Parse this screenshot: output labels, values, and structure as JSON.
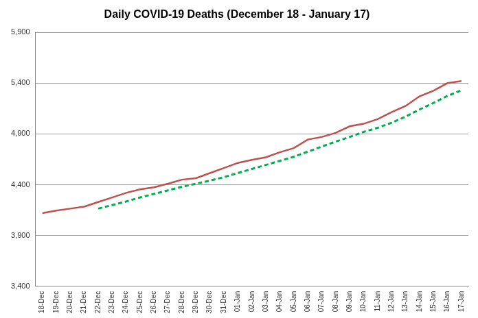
{
  "chart_data": {
    "type": "line",
    "title": "Daily COVID-19 Deaths (December 18 - January 17)",
    "categories": [
      "18-Dec",
      "19-Dec",
      "20-Dec",
      "21-Dec",
      "22-Dec",
      "23-Dec",
      "24-Dec",
      "25-Dec",
      "26-Dec",
      "27-Dec",
      "28-Dec",
      "29-Dec",
      "30-Dec",
      "31-Dec",
      "01-Jan",
      "02-Jan",
      "03-Jan",
      "04-Jan",
      "05-Jan",
      "06-Jan",
      "07-Jan",
      "08-Jan",
      "09-Jan",
      "10-Jan",
      "11-Jan",
      "12-Jan",
      "13-Jan",
      "14-Jan",
      "15-Jan",
      "16-Jan",
      "17-Jan"
    ],
    "series": [
      {
        "color": "#c0504d",
        "line_style": "solid",
        "values": [
          4120,
          4145,
          4165,
          4185,
          4230,
          4275,
          4320,
          4355,
          4375,
          4410,
          4450,
          4465,
          4515,
          4565,
          4615,
          4645,
          4670,
          4720,
          4760,
          4845,
          4870,
          4910,
          4975,
          5000,
          5045,
          5115,
          5175,
          5270,
          5325,
          5400,
          5420
        ]
      },
      {
        "color": "#00b050",
        "line_style": "dashed",
        "values": [
          null,
          null,
          null,
          null,
          4165,
          4200,
          4235,
          4275,
          4310,
          4345,
          4380,
          4410,
          4440,
          4475,
          4515,
          4555,
          4595,
          4635,
          4675,
          4725,
          4775,
          4825,
          4870,
          4920,
          4960,
          5010,
          5070,
          5140,
          5205,
          5275,
          5330
        ]
      }
    ],
    "ylim": [
      3400,
      5900
    ],
    "yticks": [
      {
        "value": 3400,
        "label": "3,400"
      },
      {
        "value": 3900,
        "label": "3,900"
      },
      {
        "value": 4400,
        "label": "4,400"
      },
      {
        "value": 4900,
        "label": "4,900"
      },
      {
        "value": 5400,
        "label": "5,400"
      },
      {
        "value": 5900,
        "label": "5,900"
      }
    ],
    "grid": true
  }
}
